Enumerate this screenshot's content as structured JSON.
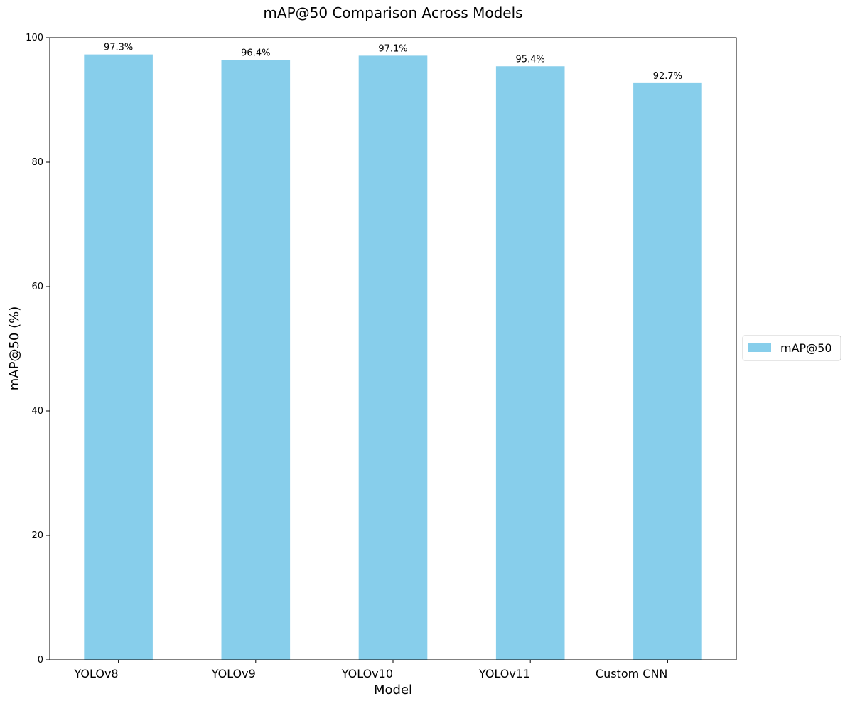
{
  "chart_data": {
    "type": "bar",
    "title": "mAP@50 Comparison Across Models",
    "xlabel": "Model",
    "ylabel": "mAP@50 (%)",
    "categories": [
      "YOLOv8",
      "YOLOv9",
      "YOLOv10",
      "YOLOv11",
      "Custom CNN"
    ],
    "series": [
      {
        "name": "mAP@50",
        "values": [
          97.3,
          96.4,
          97.1,
          95.4,
          92.7
        ],
        "color": "#87CEEB"
      }
    ],
    "data_labels": [
      "97.3%",
      "96.4%",
      "97.1%",
      "95.4%",
      "92.7%"
    ],
    "ylim": [
      0,
      100
    ],
    "yticks": [
      0,
      20,
      40,
      60,
      80,
      100
    ],
    "grid": false,
    "legend": {
      "placement": "center-right-outside",
      "entries": [
        "mAP@50"
      ]
    }
  }
}
